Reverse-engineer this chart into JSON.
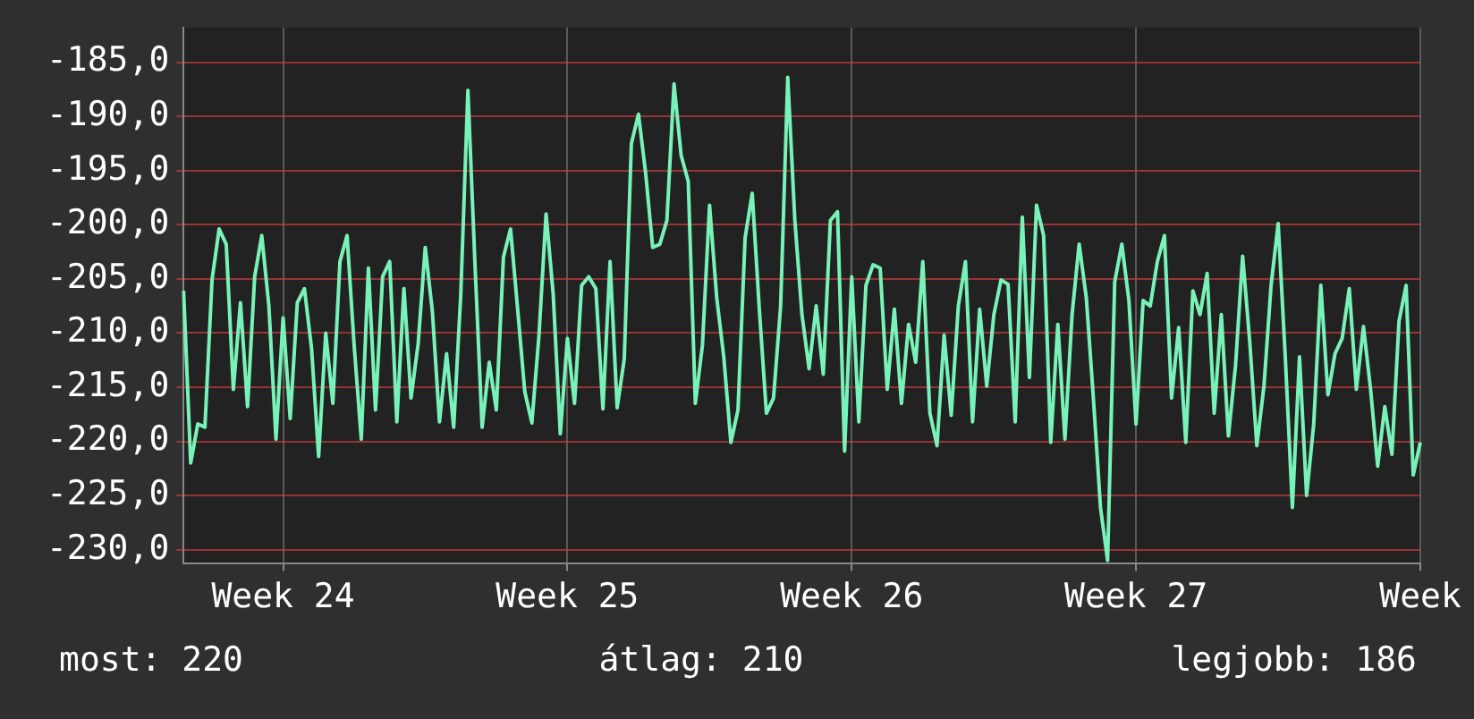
{
  "chart_data": {
    "type": "line",
    "categories": [
      null,
      null,
      null,
      null,
      null,
      null,
      null,
      null,
      null,
      null,
      null,
      null,
      null,
      null,
      "Week 24",
      null,
      null,
      null,
      null,
      null,
      null,
      null,
      null,
      null,
      null,
      null,
      null,
      null,
      null,
      null,
      null,
      null,
      null,
      null,
      null,
      null,
      null,
      null,
      null,
      null,
      null,
      null,
      null,
      null,
      null,
      null,
      null,
      null,
      null,
      null,
      null,
      null,
      null,
      null,
      "Week 25",
      null,
      null,
      null,
      null,
      null,
      null,
      null,
      null,
      null,
      null,
      null,
      null,
      null,
      null,
      null,
      null,
      null,
      null,
      null,
      null,
      null,
      null,
      null,
      null,
      null,
      null,
      null,
      null,
      null,
      null,
      null,
      null,
      null,
      null,
      null,
      null,
      null,
      null,
      null,
      "Week 26",
      null,
      null,
      null,
      null,
      null,
      null,
      null,
      null,
      null,
      null,
      null,
      null,
      null,
      null,
      null,
      null,
      null,
      null,
      null,
      null,
      null,
      null,
      null,
      null,
      null,
      null,
      null,
      null,
      null,
      null,
      null,
      null,
      null,
      null,
      null,
      null,
      null,
      null,
      null,
      "Week 27",
      null,
      null,
      null,
      null,
      null,
      null,
      null,
      null,
      null,
      null,
      null,
      null,
      null,
      null,
      null,
      null,
      null,
      null,
      null,
      null,
      null,
      null,
      null,
      null,
      null,
      null,
      null,
      null,
      null,
      null,
      null,
      null,
      null,
      null,
      null,
      null,
      null,
      null,
      null,
      "Week"
    ],
    "series": [
      {
        "color": "#78f2b8",
        "values": [
          -206.1,
          -222.0,
          -218.4,
          -218.7,
          -205.1,
          -200.4,
          -201.8,
          -215.2,
          -207.2,
          -216.8,
          -204.8,
          -201.0,
          -207.5,
          -219.8,
          -208.6,
          -217.9,
          -207.2,
          -205.9,
          -211.4,
          -221.4,
          -210.0,
          -216.5,
          -203.4,
          -201.0,
          -211.2,
          -219.8,
          -204.0,
          -217.1,
          -204.8,
          -203.4,
          -218.2,
          -205.9,
          -216.0,
          -211.0,
          -202.1,
          -208.0,
          -218.2,
          -211.9,
          -218.7,
          -206.4,
          -187.6,
          -203.7,
          -218.7,
          -212.7,
          -217.1,
          -203.0,
          -200.4,
          -207.8,
          -215.4,
          -218.3,
          -210.2,
          -199.0,
          -206.4,
          -219.3,
          -210.5,
          -216.5,
          -205.6,
          -204.8,
          -205.9,
          -217.0,
          -203.4,
          -216.9,
          -212.4,
          -192.5,
          -189.8,
          -195.2,
          -202.1,
          -201.8,
          -199.6,
          -187.0,
          -193.6,
          -196.0,
          -216.5,
          -211.1,
          -198.2,
          -206.7,
          -212.2,
          -220.1,
          -217.1,
          -201.2,
          -197.1,
          -207.8,
          -217.4,
          -216.0,
          -207.5,
          -186.4,
          -199.6,
          -208.3,
          -213.3,
          -207.5,
          -213.8,
          -199.6,
          -198.8,
          -220.9,
          -204.8,
          -218.2,
          -205.6,
          -203.7,
          -204.0,
          -215.2,
          -207.8,
          -216.5,
          -209.2,
          -212.7,
          -203.4,
          -217.4,
          -220.4,
          -210.2,
          -217.6,
          -207.5,
          -203.4,
          -218.2,
          -207.8,
          -214.9,
          -208.3,
          -205.1,
          -205.5,
          -218.2,
          -199.3,
          -214.1,
          -198.2,
          -201.0,
          -220.1,
          -209.2,
          -219.8,
          -208.3,
          -201.8,
          -206.7,
          -216.0,
          -226.1,
          -231.0,
          -205.3,
          -201.8,
          -207.0,
          -218.4,
          -207.0,
          -207.5,
          -203.4,
          -201.0,
          -216.0,
          -209.5,
          -220.1,
          -206.1,
          -208.3,
          -204.5,
          -217.4,
          -208.3,
          -219.5,
          -213.0,
          -202.9,
          -210.8,
          -220.4,
          -214.9,
          -205.6,
          -199.9,
          -212.2,
          -226.1,
          -212.2,
          -225.0,
          -218.4,
          -205.6,
          -215.7,
          -211.9,
          -210.5,
          -205.9,
          -215.2,
          -209.4,
          -215.2,
          -222.3,
          -216.8,
          -221.2,
          -208.9,
          -205.6,
          -223.1,
          -220.1
        ]
      }
    ],
    "ylim": [
      -231.3,
      -181.8
    ],
    "yticks": [
      {
        "value": -185,
        "label": "-185,0"
      },
      {
        "value": -190,
        "label": "-190,0"
      },
      {
        "value": -195,
        "label": "-195,0"
      },
      {
        "value": -200,
        "label": "-200,0"
      },
      {
        "value": -205,
        "label": "-205,0"
      },
      {
        "value": -210,
        "label": "-210,0"
      },
      {
        "value": -215,
        "label": "-215,0"
      },
      {
        "value": -220,
        "label": "-220,0"
      },
      {
        "value": -225,
        "label": "-225,0"
      },
      {
        "value": -230,
        "label": "-230,0"
      }
    ],
    "grid": true,
    "marker": "none",
    "line_style": "solid",
    "annotations": [
      "most: 220",
      "átlag: 210",
      "legjobb: 186"
    ]
  }
}
